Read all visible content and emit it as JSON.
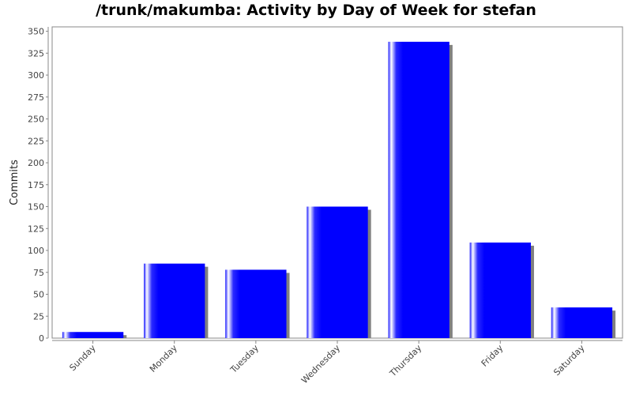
{
  "chart_data": {
    "type": "bar",
    "title": "/trunk/makumba: Activity by Day of Week for stefan",
    "xlabel": "",
    "ylabel": "Commits",
    "categories": [
      "Sunday",
      "Monday",
      "Tuesday",
      "Wednesday",
      "Thursday",
      "Friday",
      "Saturday"
    ],
    "values": [
      7,
      85,
      78,
      150,
      338,
      109,
      35
    ],
    "ylim": [
      0,
      355
    ],
    "yticks": [
      0,
      25,
      50,
      75,
      100,
      125,
      150,
      175,
      200,
      225,
      250,
      275,
      300,
      325,
      350
    ],
    "grid": false,
    "bar_color": "#0000ff",
    "shadow_color": "#808080"
  }
}
